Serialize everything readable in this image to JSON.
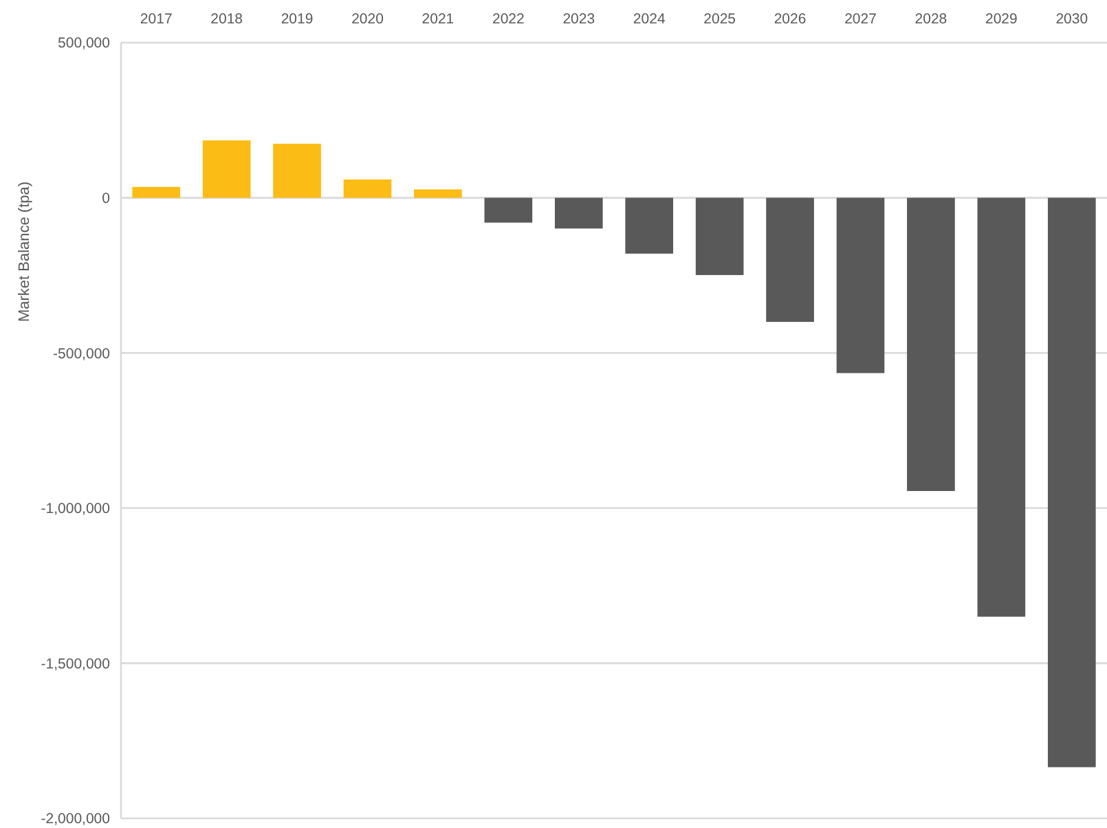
{
  "chart_data": {
    "type": "bar",
    "ylabel": "Market Balance (tpa)",
    "categories": [
      "2017",
      "2018",
      "2019",
      "2020",
      "2021",
      "2022",
      "2023",
      "2024",
      "2025",
      "2026",
      "2027",
      "2028",
      "2029",
      "2030"
    ],
    "values": [
      35000,
      185000,
      174000,
      59000,
      27000,
      -80000,
      -99000,
      -180000,
      -249000,
      -400000,
      -565000,
      -945000,
      -1350000,
      -1835000
    ],
    "colors": [
      "#fbbc15",
      "#fbbc15",
      "#fbbc15",
      "#fbbc15",
      "#fbbc15",
      "#595959",
      "#595959",
      "#595959",
      "#595959",
      "#595959",
      "#595959",
      "#595959",
      "#595959",
      "#595959"
    ],
    "ylim": [
      -2000000,
      500000
    ],
    "yticks": [
      {
        "value": 500000,
        "label": "500,000"
      },
      {
        "value": 0,
        "label": "0"
      },
      {
        "value": -500000,
        "label": "-500,000"
      },
      {
        "value": -1000000,
        "label": "-1,000,000"
      },
      {
        "value": -1500000,
        "label": "-1,500,000"
      },
      {
        "value": -2000000,
        "label": "-2,000,000"
      }
    ],
    "grid": "y"
  }
}
